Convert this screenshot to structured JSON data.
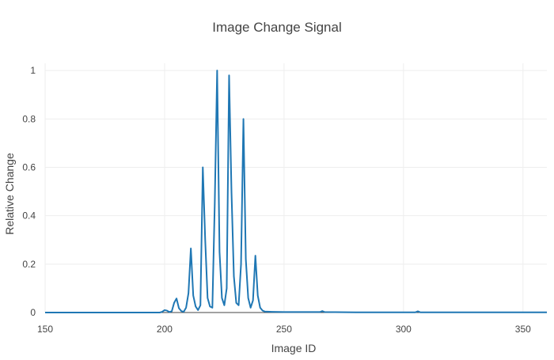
{
  "chart_data": {
    "type": "line",
    "title": "Image Change Signal",
    "xlabel": "Image ID",
    "ylabel": "Relative Change",
    "xlim": [
      150,
      360
    ],
    "ylim": [
      0,
      1.03
    ],
    "x_ticks": [
      150,
      200,
      250,
      300,
      350
    ],
    "y_ticks": [
      0,
      0.2,
      0.4,
      0.6,
      0.8,
      1
    ],
    "y_tick_labels": [
      "0",
      "0.2",
      "0.4",
      "0.6",
      "0.8",
      "1"
    ],
    "grid": true,
    "line_color": "#1f77b4",
    "series": [
      {
        "x": [
          150,
          180,
          198,
          199,
          200,
          201,
          202,
          203,
          204,
          205,
          206,
          207,
          208,
          209,
          210,
          211,
          212,
          213,
          214,
          215,
          216,
          217,
          218,
          219,
          220,
          221,
          222,
          223,
          224,
          225,
          226,
          227,
          228,
          229,
          230,
          231,
          232,
          233,
          234,
          235,
          236,
          237,
          238,
          239,
          240,
          241,
          242,
          245,
          250,
          260,
          265,
          266,
          267,
          280,
          300,
          305,
          306,
          307,
          320,
          340,
          360
        ],
        "y": [
          0,
          0,
          0,
          0.003,
          0.01,
          0.008,
          0.002,
          0.005,
          0.04,
          0.058,
          0.018,
          0.006,
          0.003,
          0.02,
          0.08,
          0.265,
          0.07,
          0.025,
          0.01,
          0.03,
          0.6,
          0.3,
          0.06,
          0.025,
          0.02,
          0.45,
          1.0,
          0.25,
          0.06,
          0.03,
          0.1,
          0.98,
          0.5,
          0.15,
          0.04,
          0.03,
          0.2,
          0.8,
          0.22,
          0.06,
          0.02,
          0.05,
          0.235,
          0.07,
          0.02,
          0.008,
          0.004,
          0.003,
          0.002,
          0.002,
          0.002,
          0.006,
          0.002,
          0.001,
          0.001,
          0.001,
          0.005,
          0.001,
          0.001,
          0.001,
          0.001
        ]
      }
    ]
  }
}
